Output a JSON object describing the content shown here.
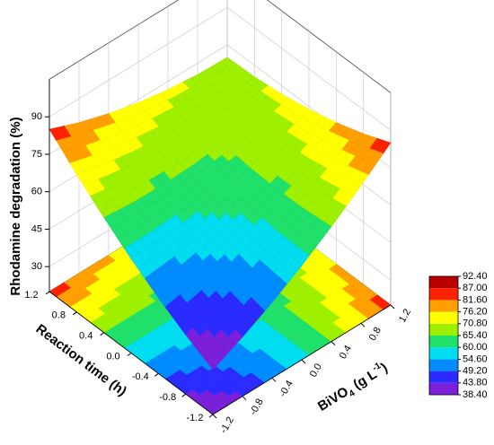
{
  "chart_data": {
    "type": "surface3d",
    "z_label": "Rhodamine degradation (%)",
    "y_label": "Reaction time (h)",
    "x_label": [
      "BiVO",
      "4",
      " (g L",
      "-1",
      ")"
    ],
    "x": [
      -1.2,
      -0.8,
      -0.4,
      0,
      0.4,
      0.8,
      1.2
    ],
    "y": [
      -1.2,
      -0.8,
      -0.4,
      0,
      0.4,
      0.8,
      1.2
    ],
    "z": [
      [
        38.0,
        43.7,
        50.3,
        57.7,
        66.0,
        75.1,
        85.0
      ],
      [
        43.7,
        47.8,
        52.6,
        58.3,
        64.9,
        72.2,
        80.4
      ],
      [
        50.3,
        52.6,
        55.8,
        59.8,
        64.6,
        70.2,
        76.7
      ],
      [
        57.7,
        58.3,
        59.8,
        62.0,
        65.1,
        69.0,
        73.8
      ],
      [
        66.0,
        64.9,
        64.6,
        65.1,
        66.4,
        68.6,
        71.7
      ],
      [
        75.1,
        72.2,
        70.2,
        69.0,
        68.6,
        69.1,
        70.4
      ],
      [
        85.0,
        80.4,
        76.7,
        73.8,
        71.7,
        70.4,
        70.0
      ]
    ],
    "xlim": [
      -1.2,
      1.2
    ],
    "ylim": [
      -1.2,
      1.2
    ],
    "zlim": [
      20,
      105
    ],
    "xticks": [
      -1.2,
      -0.8,
      -0.4,
      {
        "value": 0,
        "label": "0.0"
      },
      0.4,
      0.8,
      1.2
    ],
    "yticks": [
      -1.2,
      -0.8,
      -0.4,
      {
        "value": 0,
        "label": "0.0"
      },
      0.4,
      0.8,
      1.2
    ],
    "zticks": [
      30,
      45,
      60,
      75,
      90
    ],
    "colorbar": {
      "ticks": [
        {
          "value": 38.4,
          "label": "38.40"
        },
        {
          "value": 43.8,
          "label": "43.80"
        },
        {
          "value": 49.2,
          "label": "49.20"
        },
        {
          "value": 54.6,
          "label": "54.60"
        },
        {
          "value": 60,
          "label": "60.00"
        },
        {
          "value": 65.4,
          "label": "65.40"
        },
        {
          "value": 70.8,
          "label": "70.80"
        },
        {
          "value": 76.2,
          "label": "76.20"
        },
        {
          "value": 81.6,
          "label": "81.60"
        },
        {
          "value": 87,
          "label": "87.00"
        },
        {
          "value": 92.4,
          "label": "92.40"
        }
      ],
      "colors": [
        "#7b1fd8",
        "#2b2bff",
        "#008cff",
        "#00dcf0",
        "#1fe06a",
        "#9ef000",
        "#ffff00",
        "#ffa000",
        "#ff2200",
        "#b80000"
      ]
    }
  }
}
